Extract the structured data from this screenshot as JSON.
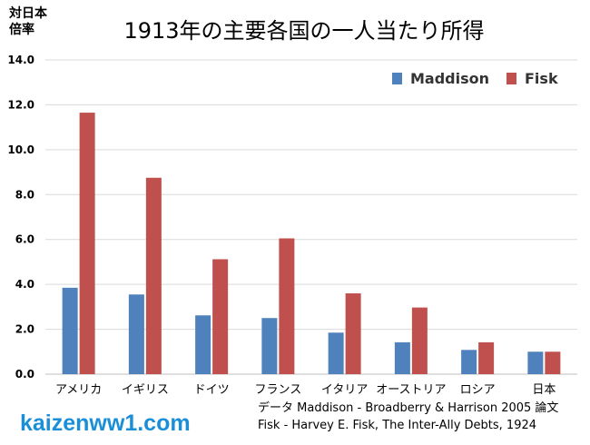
{
  "chart_data": {
    "type": "bar",
    "title": "1913年の主要各国の一人当たり所得",
    "ylabel_lines": [
      "対日本",
      "倍率"
    ],
    "categories": [
      "アメリカ",
      "イギリス",
      "ドイツ",
      "フランス",
      "イタリア",
      "オーストリア",
      "ロシア",
      "日本"
    ],
    "series": [
      {
        "name": "Maddison",
        "color": "#4f81bd",
        "values": [
          3.85,
          3.55,
          2.62,
          2.5,
          1.85,
          1.42,
          1.08,
          1.0
        ]
      },
      {
        "name": "Fisk",
        "color": "#c0504d",
        "values": [
          11.65,
          8.75,
          5.12,
          6.05,
          3.6,
          2.97,
          1.42,
          1.0
        ]
      }
    ],
    "ylim": [
      0,
      14
    ],
    "yticks": [
      "0.0",
      "2.0",
      "4.0",
      "6.0",
      "8.0",
      "10.0",
      "12.0",
      "14.0"
    ],
    "grid": true,
    "legend_position": "top-right"
  },
  "watermark": "kaizenww1.com",
  "source": {
    "line1": "データ Maddison - Broadberry & Harrison 2005 論文",
    "line2": "Fisk - Harvey E. Fisk, The Inter-Ally Debts, 1924"
  }
}
